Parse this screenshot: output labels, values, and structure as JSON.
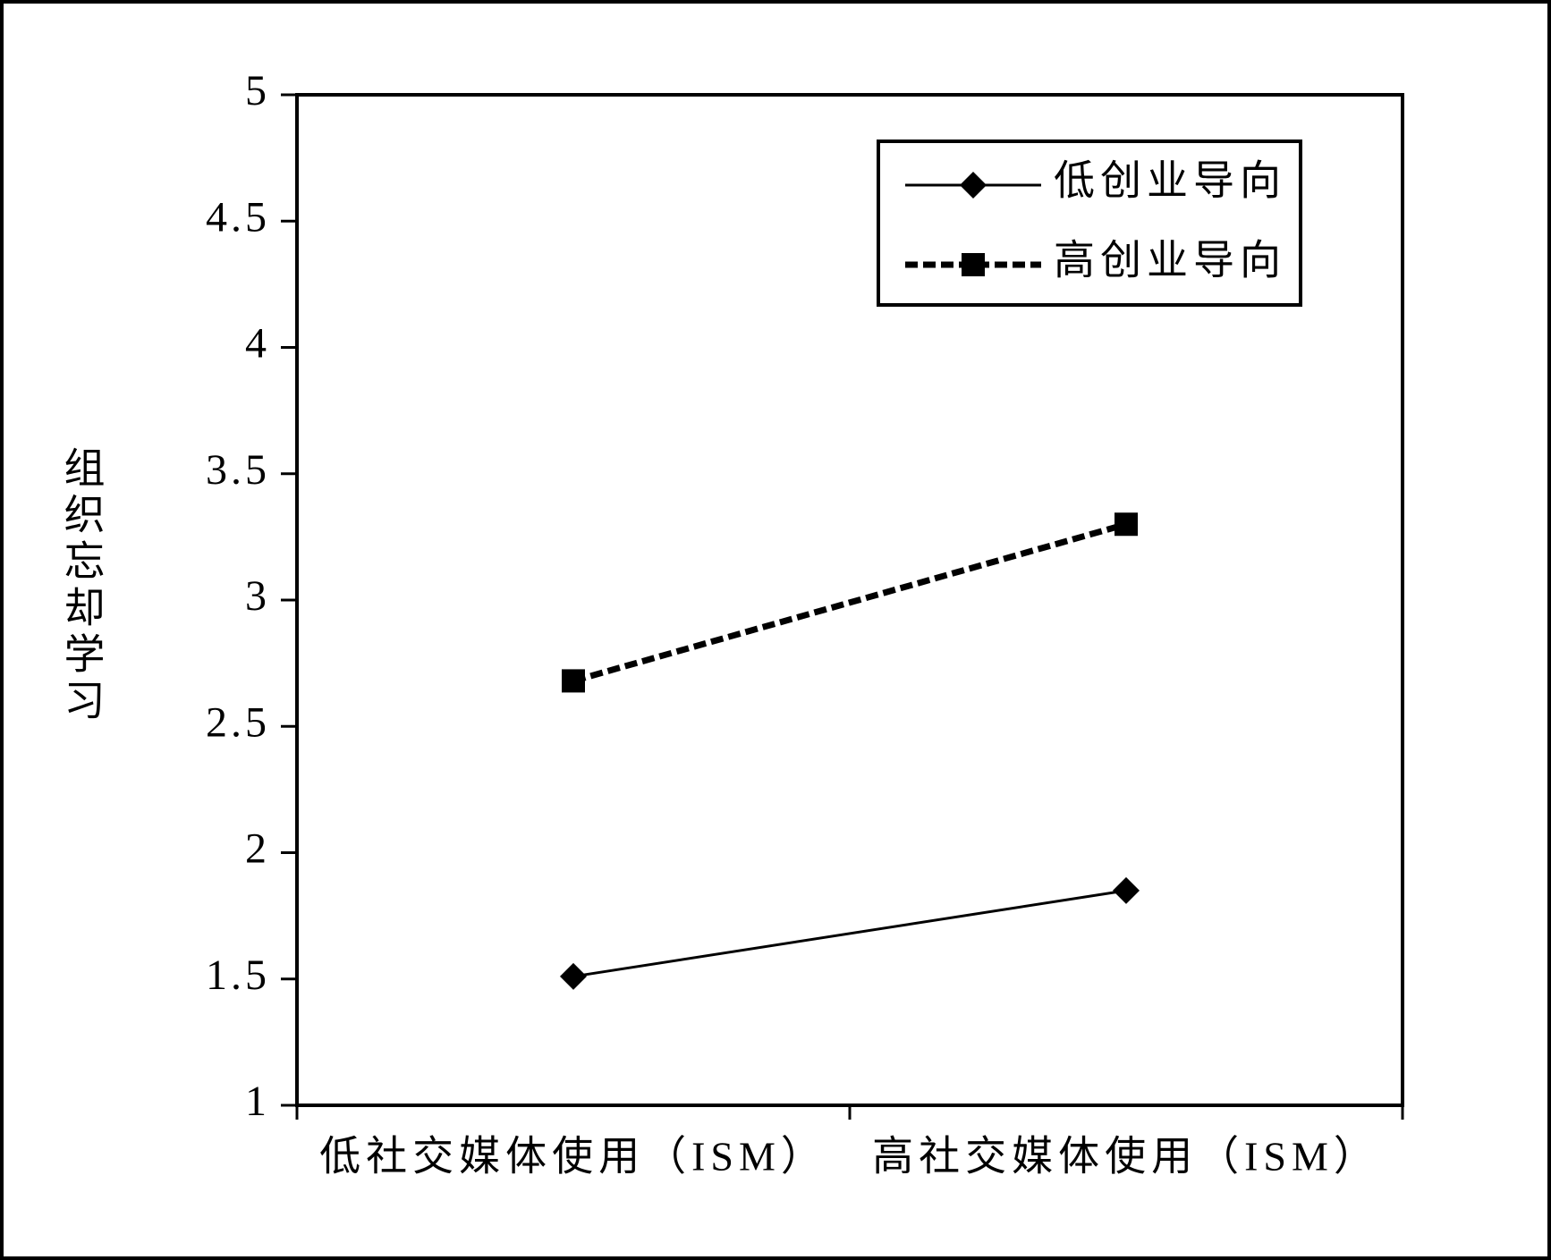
{
  "chart_data": {
    "type": "line",
    "y_label": "组织忘却学习",
    "categories": [
      "低社交媒体使用（ISM）",
      "高社交媒体使用（ISM）"
    ],
    "series": [
      {
        "name": "低创业导向",
        "color": "#000000",
        "line_style": "solid",
        "marker": "diamond",
        "values": [
          1.51,
          1.85
        ]
      },
      {
        "name": "高创业导向",
        "color": "#000000",
        "line_style": "dashed",
        "marker": "square",
        "values": [
          2.68,
          3.3
        ]
      }
    ],
    "ylim": [
      1,
      5
    ],
    "yticks": [
      1,
      1.5,
      2,
      2.5,
      3,
      3.5,
      4,
      4.5,
      5
    ],
    "grid": false,
    "legend": "upper right"
  }
}
